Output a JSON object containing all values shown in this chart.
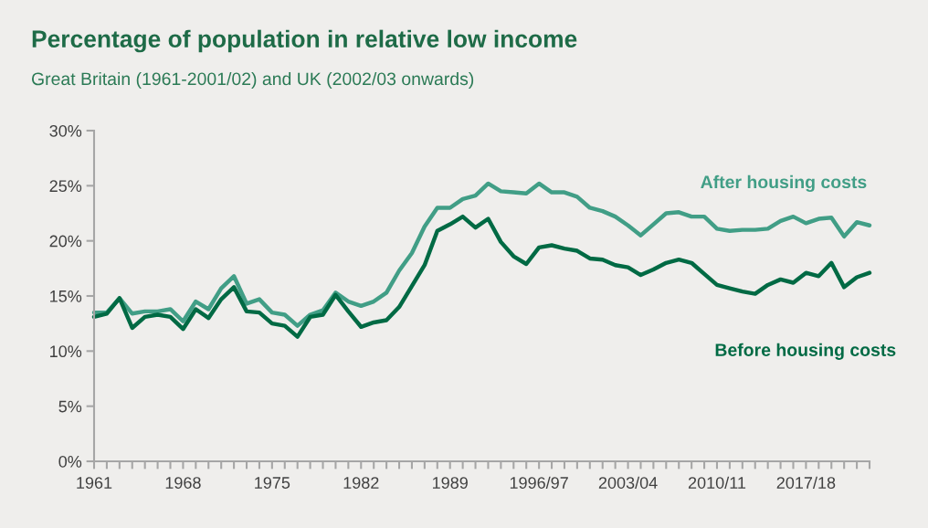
{
  "chart_data": {
    "type": "line",
    "title": "Percentage of population in relative low income",
    "subtitle": "Great Britain (1961-2001/02) and UK (2002/03 onwards)",
    "categories": [
      "1961",
      null,
      null,
      null,
      null,
      null,
      null,
      "1968",
      null,
      null,
      null,
      null,
      null,
      null,
      "1975",
      null,
      null,
      null,
      null,
      null,
      null,
      "1982",
      null,
      null,
      null,
      null,
      null,
      null,
      "1989",
      null,
      null,
      null,
      null,
      null,
      null,
      "1996/97",
      null,
      null,
      null,
      null,
      null,
      null,
      "2003/04",
      null,
      null,
      null,
      null,
      null,
      null,
      "2010/11",
      null,
      null,
      null,
      null,
      null,
      null,
      "2017/18",
      null,
      null,
      null,
      null,
      null
    ],
    "ylim": [
      0,
      30
    ],
    "yticks": [
      {
        "value": 0,
        "label": "0%"
      },
      {
        "value": 5,
        "label": "5%"
      },
      {
        "value": 10,
        "label": "10%"
      },
      {
        "value": 15,
        "label": "15%"
      },
      {
        "value": 20,
        "label": "20%"
      },
      {
        "value": 25,
        "label": "25%"
      },
      {
        "value": 30,
        "label": "30%"
      }
    ],
    "grid": false,
    "legend": false,
    "marker": "none",
    "line_style": "solid",
    "series": [
      {
        "name": "After housing costs",
        "color": "#419e86",
        "values": [
          13.5,
          13.5,
          14.8,
          13.4,
          13.6,
          13.6,
          13.8,
          12.7,
          14.5,
          13.8,
          15.7,
          16.8,
          14.3,
          14.7,
          13.5,
          13.3,
          12.3,
          13.3,
          13.7,
          15.3,
          14.5,
          14.1,
          14.5,
          15.3,
          17.3,
          18.9,
          21.3,
          23.0,
          23.0,
          23.8,
          24.1,
          25.2,
          24.5,
          24.4,
          24.3,
          25.2,
          24.4,
          24.4,
          24.0,
          23.0,
          22.7,
          22.2,
          21.4,
          20.5,
          21.5,
          22.5,
          22.6,
          22.2,
          22.2,
          21.1,
          20.9,
          21.0,
          21.0,
          21.1,
          21.8,
          22.2,
          21.6,
          22.0,
          22.1,
          20.4,
          21.7,
          21.4
        ]
      },
      {
        "name": "Before housing costs",
        "color": "#006a44",
        "values": [
          13.1,
          13.4,
          14.8,
          12.1,
          13.1,
          13.3,
          13.1,
          12.0,
          13.8,
          13.0,
          14.7,
          15.8,
          13.6,
          13.5,
          12.5,
          12.3,
          11.3,
          13.1,
          13.3,
          15.1,
          13.6,
          12.2,
          12.6,
          12.8,
          14.0,
          15.9,
          17.8,
          20.9,
          21.5,
          22.2,
          21.2,
          22.0,
          19.9,
          18.6,
          17.9,
          19.4,
          19.6,
          19.3,
          19.1,
          18.4,
          18.3,
          17.8,
          17.6,
          16.9,
          17.4,
          18.0,
          18.3,
          18.0,
          17.0,
          16.0,
          15.7,
          15.4,
          15.2,
          16.0,
          16.5,
          16.2,
          17.1,
          16.8,
          18.0,
          15.8,
          16.7,
          17.1
        ]
      }
    ]
  }
}
